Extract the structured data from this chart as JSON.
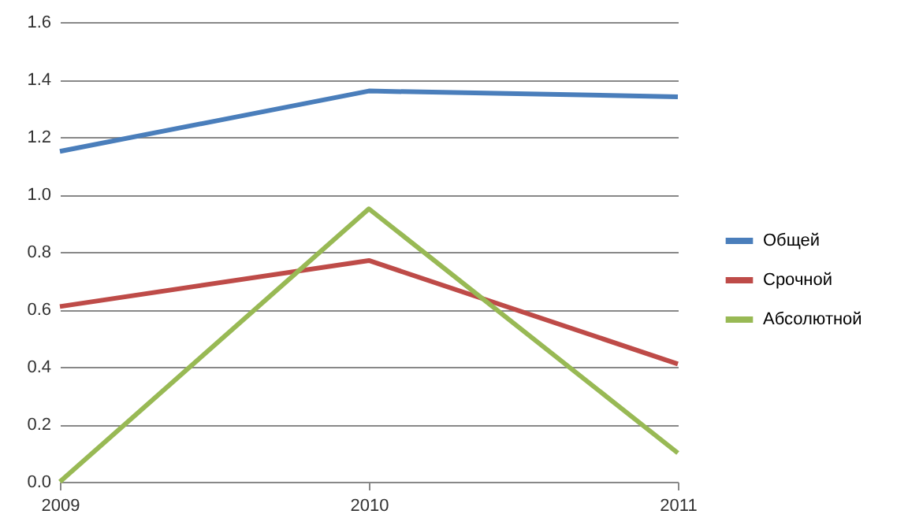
{
  "chart_data": {
    "type": "line",
    "categories": [
      "2009",
      "2010",
      "2011"
    ],
    "series": [
      {
        "name": "Общей",
        "color": "#4a7ebb",
        "values": [
          1.15,
          1.36,
          1.34
        ]
      },
      {
        "name": "Срочной",
        "color": "#be4b48",
        "values": [
          0.61,
          0.77,
          0.41
        ]
      },
      {
        "name": "Абсолютной",
        "color": "#98b954",
        "values": [
          0.0,
          0.95,
          0.1
        ]
      }
    ],
    "ylim": [
      0,
      1.6
    ],
    "yticks": [
      {
        "value": 0,
        "label": "0.0"
      },
      {
        "value": 0.2,
        "label": "0.2"
      },
      {
        "value": 0.4,
        "label": "0.4"
      },
      {
        "value": 0.6,
        "label": "0.6"
      },
      {
        "value": 0.8,
        "label": "0.8"
      },
      {
        "value": 1,
        "label": "1.0"
      },
      {
        "value": 1.2,
        "label": "1.2"
      },
      {
        "value": 1.4,
        "label": "1.4"
      },
      {
        "value": 1.6,
        "label": "1.6"
      }
    ],
    "grid": "y",
    "legend": "right",
    "marker": "none",
    "line_style": "solid"
  }
}
